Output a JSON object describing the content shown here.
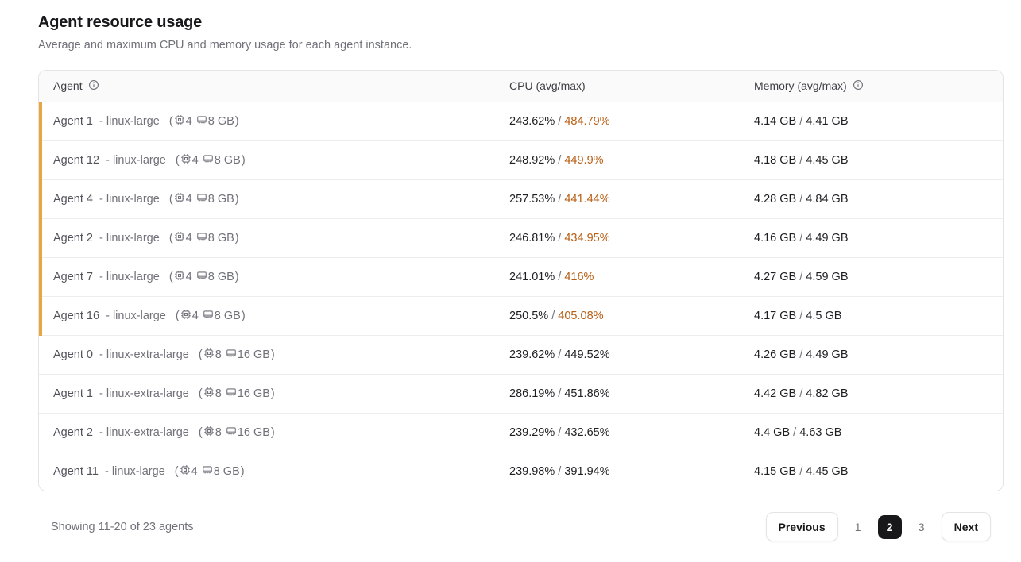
{
  "page": {
    "title": "Agent resource usage",
    "subtitle": "Average and maximum CPU and memory usage for each agent instance."
  },
  "table": {
    "headers": {
      "agent": "Agent",
      "cpu": "CPU (avg/max)",
      "memory": "Memory (avg/max)"
    },
    "rows": [
      {
        "name": "Agent 1",
        "type": "- linux-large",
        "cores": "4",
        "ram": "8 GB",
        "cpu_avg": "243.62%",
        "cpu_max": "484.79%",
        "mem_avg": "4.14 GB",
        "mem_max": "4.41 GB",
        "cpu_warning": true
      },
      {
        "name": "Agent 12",
        "type": "- linux-large",
        "cores": "4",
        "ram": "8 GB",
        "cpu_avg": "248.92%",
        "cpu_max": "449.9%",
        "mem_avg": "4.18 GB",
        "mem_max": "4.45 GB",
        "cpu_warning": true
      },
      {
        "name": "Agent 4",
        "type": "- linux-large",
        "cores": "4",
        "ram": "8 GB",
        "cpu_avg": "257.53%",
        "cpu_max": "441.44%",
        "mem_avg": "4.28 GB",
        "mem_max": "4.84 GB",
        "cpu_warning": true
      },
      {
        "name": "Agent 2",
        "type": "- linux-large",
        "cores": "4",
        "ram": "8 GB",
        "cpu_avg": "246.81%",
        "cpu_max": "434.95%",
        "mem_avg": "4.16 GB",
        "mem_max": "4.49 GB",
        "cpu_warning": true
      },
      {
        "name": "Agent 7",
        "type": "- linux-large",
        "cores": "4",
        "ram": "8 GB",
        "cpu_avg": "241.01%",
        "cpu_max": "416%",
        "mem_avg": "4.27 GB",
        "mem_max": "4.59 GB",
        "cpu_warning": true
      },
      {
        "name": "Agent 16",
        "type": "- linux-large",
        "cores": "4",
        "ram": "8 GB",
        "cpu_avg": "250.5%",
        "cpu_max": "405.08%",
        "mem_avg": "4.17 GB",
        "mem_max": "4.5 GB",
        "cpu_warning": true
      },
      {
        "name": "Agent 0",
        "type": "- linux-extra-large",
        "cores": "8",
        "ram": "16 GB",
        "cpu_avg": "239.62%",
        "cpu_max": "449.52%",
        "mem_avg": "4.26 GB",
        "mem_max": "4.49 GB",
        "cpu_warning": false
      },
      {
        "name": "Agent 1",
        "type": "- linux-extra-large",
        "cores": "8",
        "ram": "16 GB",
        "cpu_avg": "286.19%",
        "cpu_max": "451.86%",
        "mem_avg": "4.42 GB",
        "mem_max": "4.82 GB",
        "cpu_warning": false
      },
      {
        "name": "Agent 2",
        "type": "- linux-extra-large",
        "cores": "8",
        "ram": "16 GB",
        "cpu_avg": "239.29%",
        "cpu_max": "432.65%",
        "mem_avg": "4.4 GB",
        "mem_max": "4.63 GB",
        "cpu_warning": false
      },
      {
        "name": "Agent 11",
        "type": "- linux-large",
        "cores": "4",
        "ram": "8 GB",
        "cpu_avg": "239.98%",
        "cpu_max": "391.94%",
        "mem_avg": "4.15 GB",
        "mem_max": "4.45 GB",
        "cpu_warning": false
      }
    ],
    "value_separator": "/"
  },
  "footer": {
    "showing": "Showing 11-20 of 23 agents",
    "previous_label": "Previous",
    "pages": [
      "1",
      "2",
      "3"
    ],
    "active_page": "2",
    "next_label": "Next"
  },
  "colors": {
    "warning_bar": "#e8a63c",
    "cpu_max_high": "#b85e14",
    "active_page_bg": "#18181b"
  }
}
